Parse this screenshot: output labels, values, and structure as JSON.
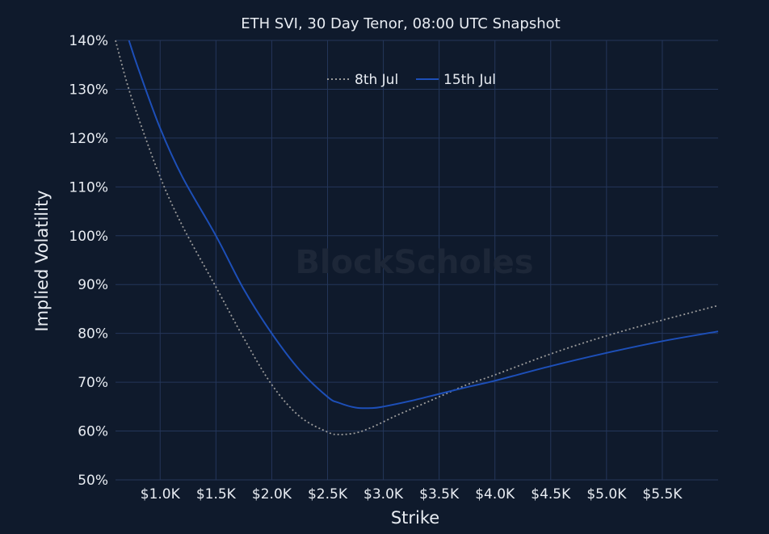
{
  "chart_data": {
    "type": "line",
    "title": "ETH SVI, 30 Day Tenor, 08:00 UTC Snapshot",
    "xlabel": "Strike",
    "ylabel": "Implied Volatility",
    "watermark": "BlockScholes",
    "x_ticks": [
      {
        "value": 1000,
        "label": "$1.0K"
      },
      {
        "value": 1500,
        "label": "$1.5K"
      },
      {
        "value": 2000,
        "label": "$2.0K"
      },
      {
        "value": 2500,
        "label": "$2.5K"
      },
      {
        "value": 3000,
        "label": "$3.0K"
      },
      {
        "value": 3500,
        "label": "$3.5K"
      },
      {
        "value": 4000,
        "label": "$4.0K"
      },
      {
        "value": 4500,
        "label": "$4.5K"
      },
      {
        "value": 5000,
        "label": "$5.0K"
      },
      {
        "value": 5500,
        "label": "$5.5K"
      }
    ],
    "y_ticks": [
      {
        "value": 50,
        "label": "50%"
      },
      {
        "value": 60,
        "label": "60%"
      },
      {
        "value": 70,
        "label": "70%"
      },
      {
        "value": 80,
        "label": "80%"
      },
      {
        "value": 90,
        "label": "90%"
      },
      {
        "value": 100,
        "label": "100%"
      },
      {
        "value": 110,
        "label": "110%"
      },
      {
        "value": 120,
        "label": "120%"
      },
      {
        "value": 130,
        "label": "130%"
      },
      {
        "value": 140,
        "label": "140%"
      }
    ],
    "xlim": [
      600,
      6000
    ],
    "ylim": [
      50,
      140
    ],
    "legend_position": "top-center",
    "grid": true,
    "series": [
      {
        "name": "8th Jul",
        "color": "#9a9a9a",
        "style": "dotted",
        "x": [
          600,
          700,
          800,
          1000,
          1200,
          1500,
          1750,
          2000,
          2250,
          2500,
          2600,
          2750,
          2900,
          3100,
          3300,
          3500,
          3750,
          4000,
          4500,
          5000,
          5500,
          6000
        ],
        "y": [
          140,
          131.5,
          124.5,
          112,
          102,
          89.5,
          79,
          69.5,
          63,
          59.8,
          59.3,
          59.6,
          60.8,
          63,
          65,
          67,
          69.5,
          71.5,
          75.8,
          79.5,
          82.7,
          85.7
        ]
      },
      {
        "name": "15th Jul",
        "color": "#1d4fb8",
        "style": "solid",
        "x": [
          720,
          800,
          1000,
          1200,
          1500,
          1750,
          2000,
          2250,
          2500,
          2600,
          2750,
          2900,
          3000,
          3250,
          3500,
          3750,
          4000,
          4500,
          5000,
          5500,
          6000
        ],
        "y": [
          140,
          134.5,
          122,
          112,
          100,
          89,
          80,
          72.5,
          67,
          65.8,
          64.8,
          64.7,
          65,
          66.2,
          67.6,
          69,
          70.3,
          73.3,
          76,
          78.4,
          80.4
        ]
      }
    ]
  }
}
